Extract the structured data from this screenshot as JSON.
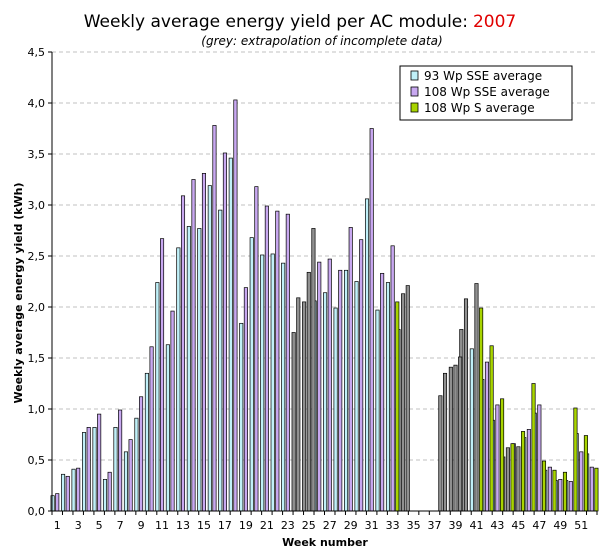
{
  "chart_data": {
    "type": "bar",
    "title": "Weekly average energy yield per AC module:",
    "title_year": "2007",
    "subtitle": "(grey: extrapolation of incomplete data)",
    "xlabel": "Week number",
    "ylabel": "Weekly average energy yield (kWh)",
    "ylim": [
      0,
      4.5
    ],
    "grid": true,
    "legend_placement": "top-right",
    "y_ticks": [
      "0,0",
      "0,5",
      "1,0",
      "1,5",
      "2,0",
      "2,5",
      "3,0",
      "3,5",
      "4,0",
      "4,5"
    ],
    "x_ticks": [
      "1",
      "3",
      "5",
      "7",
      "9",
      "11",
      "13",
      "15",
      "17",
      "19",
      "21",
      "23",
      "25",
      "27",
      "29",
      "31",
      "33",
      "35",
      "37",
      "39",
      "41",
      "43",
      "45",
      "47",
      "49",
      "51"
    ],
    "categories": [
      1,
      2,
      3,
      4,
      5,
      6,
      7,
      8,
      9,
      10,
      11,
      12,
      13,
      14,
      15,
      16,
      17,
      18,
      19,
      20,
      21,
      22,
      23,
      24,
      25,
      26,
      27,
      28,
      29,
      30,
      31,
      32,
      33,
      34,
      35,
      36,
      37,
      38,
      39,
      40,
      41,
      42,
      43,
      44,
      45,
      46,
      47,
      48,
      49,
      50,
      51,
      52
    ],
    "colors": {
      "series_93": "#c0f0f8",
      "series_108sse": "#c8a8f0",
      "series_108s": "#a8d400",
      "extrapolated": "#909090",
      "grid": "#c0c0c0"
    },
    "series": [
      {
        "name": "93 Wp SSE average",
        "values": [
          0.15,
          0.36,
          0.41,
          0.77,
          0.82,
          0.31,
          0.82,
          0.58,
          0.91,
          1.35,
          2.24,
          1.63,
          2.58,
          2.79,
          2.77,
          3.19,
          2.95,
          3.46,
          1.84,
          2.68,
          2.51,
          2.52,
          2.43,
          1.75,
          2.05,
          2.06,
          2.14,
          1.99,
          2.36,
          2.25,
          3.06,
          1.97,
          2.24,
          1.78,
          null,
          null,
          null,
          1.13,
          1.41,
          1.78,
          1.59,
          1.29,
          0.89,
          0.53,
          0.66,
          0.72,
          0.96,
          0.4,
          0.3,
          0.3,
          0.76,
          0.56
        ],
        "extrapolated": [
          false,
          false,
          false,
          false,
          false,
          false,
          false,
          false,
          false,
          false,
          false,
          false,
          false,
          false,
          false,
          false,
          false,
          false,
          false,
          false,
          false,
          false,
          false,
          true,
          true,
          false,
          false,
          false,
          false,
          false,
          false,
          false,
          false,
          false,
          false,
          false,
          false,
          true,
          true,
          true,
          false,
          false,
          false,
          true,
          true,
          false,
          false,
          false,
          false,
          false,
          false,
          false
        ]
      },
      {
        "name": "108 Wp SSE average",
        "values": [
          0.17,
          0.34,
          0.42,
          0.82,
          0.95,
          0.38,
          0.99,
          0.7,
          1.12,
          1.61,
          2.67,
          1.96,
          3.09,
          3.25,
          3.31,
          3.78,
          3.51,
          4.03,
          2.19,
          3.18,
          2.99,
          2.94,
          2.91,
          2.09,
          2.34,
          2.44,
          2.47,
          2.36,
          2.78,
          2.66,
          3.75,
          2.33,
          2.6,
          2.13,
          null,
          null,
          null,
          1.35,
          1.43,
          2.08,
          2.23,
          1.46,
          1.04,
          0.62,
          0.63,
          0.8,
          1.04,
          0.43,
          0.31,
          0.29,
          0.58,
          0.43
        ],
        "extrapolated": [
          false,
          false,
          false,
          false,
          false,
          false,
          false,
          false,
          false,
          false,
          false,
          false,
          false,
          false,
          false,
          false,
          false,
          false,
          false,
          false,
          false,
          false,
          false,
          true,
          true,
          false,
          false,
          false,
          false,
          false,
          false,
          false,
          false,
          true,
          false,
          false,
          false,
          true,
          true,
          true,
          true,
          false,
          false,
          true,
          true,
          false,
          false,
          false,
          false,
          false,
          false,
          false
        ]
      },
      {
        "name": "108 Wp S average",
        "values": [
          null,
          null,
          null,
          null,
          null,
          null,
          null,
          null,
          null,
          null,
          null,
          null,
          null,
          null,
          null,
          null,
          null,
          null,
          null,
          null,
          null,
          null,
          null,
          null,
          2.77,
          null,
          null,
          null,
          null,
          null,
          null,
          null,
          2.05,
          2.21,
          null,
          null,
          null,
          null,
          1.51,
          null,
          1.99,
          1.62,
          1.1,
          0.66,
          0.78,
          1.25,
          0.49,
          0.4,
          0.38,
          1.01,
          0.74,
          0.42
        ],
        "extrapolated": [
          false,
          false,
          false,
          false,
          false,
          false,
          false,
          false,
          false,
          false,
          false,
          false,
          false,
          false,
          false,
          false,
          false,
          false,
          false,
          false,
          false,
          false,
          false,
          false,
          true,
          false,
          false,
          false,
          false,
          false,
          false,
          false,
          false,
          true,
          false,
          false,
          false,
          false,
          true,
          false,
          false,
          false,
          false,
          false,
          false,
          false,
          false,
          false,
          false,
          false,
          false,
          false
        ]
      }
    ]
  }
}
